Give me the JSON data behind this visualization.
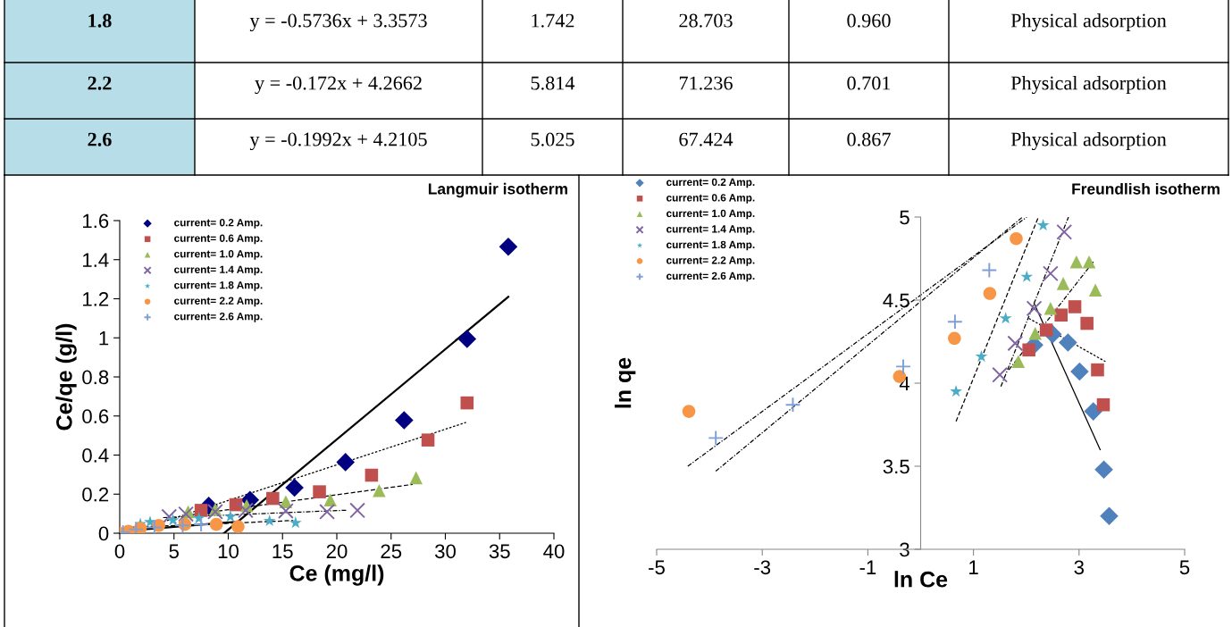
{
  "chart_data": [
    {
      "type": "other",
      "annotations": [
        "1.8",
        "y = -0.5736x + 3.3573",
        "1.742",
        "28.703",
        "0.960",
        "Physical adsorption",
        "2.2",
        "y = -0.172x + 4.2662",
        "5.814",
        "71.236",
        "0.701",
        "Physical adsorption",
        "2.6",
        "y = -0.1992x + 4.2105",
        "5.025",
        "67.424",
        "0.867",
        "Physical adsorption"
      ]
    },
    {
      "type": "scatter",
      "title": "Langmuir isotherm",
      "xlabel": "Ce (mg/l)",
      "ylabel": "Ce/qe (g/l)",
      "xlim": [
        0,
        40
      ],
      "ylim": [
        0,
        1.6
      ],
      "xticks": [
        0,
        5,
        10,
        15,
        20,
        25,
        30,
        35,
        40
      ],
      "yticks": [
        0,
        0.2,
        0.4,
        0.6,
        0.8,
        1,
        1.2,
        1.4,
        1.6
      ],
      "grid": false,
      "legend": "top left",
      "series": [
        {
          "name": "current= 0.2 Amp.",
          "color": "#000080",
          "marker": "diamond",
          "x": [
            8.2,
            12.0,
            16.1,
            20.8,
            26.2,
            32.0,
            35.8
          ],
          "values": [
            0.14,
            0.17,
            0.233,
            0.364,
            0.578,
            0.994,
            1.466
          ]
        },
        {
          "name": "current= 0.6 Amp.",
          "color": "#c0504d",
          "marker": "square",
          "x": [
            7.5,
            10.7,
            14.1,
            18.4,
            23.2,
            28.4,
            32.0
          ],
          "values": [
            0.117,
            0.146,
            0.178,
            0.212,
            0.297,
            0.477,
            0.667
          ]
        },
        {
          "name": "current= 1.0 Amp.",
          "color": "#9bbb59",
          "marker": "triangle",
          "x": [
            6.3,
            8.8,
            11.7,
            15.3,
            19.4,
            23.9,
            27.3
          ],
          "values": [
            0.11,
            0.123,
            0.142,
            0.161,
            0.17,
            0.218,
            0.284
          ]
        },
        {
          "name": "current= 1.4 Amp.",
          "color": "#8064a2",
          "marker": "cross",
          "x": [
            4.55,
            6.1,
            8.8,
            11.6,
            15.3,
            19.1,
            21.9
          ],
          "values": [
            0.085,
            0.098,
            0.11,
            0.117,
            0.114,
            0.11,
            0.117
          ]
        },
        {
          "name": "current= 1.8 Amp.",
          "color": "#4bacc6",
          "marker": "star",
          "x": [
            1.9,
            2.8,
            4.9,
            7.3,
            10.2,
            13.8,
            16.2
          ],
          "values": [
            0.047,
            0.057,
            0.066,
            0.076,
            0.085,
            0.063,
            0.053
          ]
        },
        {
          "name": "current= 2.2 Amp.",
          "color": "#f79646",
          "marker": "circle",
          "x": [
            0,
            0.8,
            1.9,
            3.6,
            6.0,
            8.9,
            10.9
          ],
          "values": [
            0,
            0.01,
            0.025,
            0.04,
            0.045,
            0.045,
            0.034
          ]
        },
        {
          "name": "current= 2.6 Amp.",
          "color": "#7f9fd6",
          "marker": "plus",
          "x": [
            0.3,
            1.5,
            3.2,
            5.8,
            7.5
          ],
          "values": [
            0.005,
            0.02,
            0.03,
            0.04,
            0.045
          ]
        },
        {
          "type": "line",
          "color": "#000000",
          "marker": "none",
          "line_style": "solid",
          "x": [
            9.6,
            35.8
          ],
          "values": [
            0,
            1.21
          ]
        },
        {
          "type": "line",
          "color": "#000000",
          "marker": "none",
          "line_style": "dotted",
          "x": [
            3,
            31.9
          ],
          "values": [
            0.04,
            0.567
          ]
        },
        {
          "type": "line",
          "color": "#000000",
          "marker": "none",
          "line_style": "dashed",
          "x": [
            6,
            27
          ],
          "values": [
            0.09,
            0.25
          ]
        },
        {
          "type": "line",
          "color": "#000000",
          "marker": "none",
          "line_style": "dashdot",
          "x": [
            4,
            21
          ],
          "values": [
            0.08,
            0.118
          ]
        },
        {
          "type": "line",
          "color": "#000000",
          "marker": "none",
          "line_style": "dashed",
          "x": [
            1,
            16
          ],
          "values": [
            0.03,
            0.065
          ]
        },
        {
          "type": "line",
          "color": "#000000",
          "marker": "none",
          "line_style": "solid",
          "x": [
            0,
            11
          ],
          "values": [
            0.01,
            0.06
          ]
        }
      ]
    },
    {
      "type": "scatter",
      "title": "Freundlish isotherm",
      "xlabel": "ln Ce",
      "ylabel": "ln qe",
      "xlim": [
        -5,
        5
      ],
      "ylim": [
        3,
        5
      ],
      "xticks": [
        -5,
        -3,
        -1,
        1,
        3,
        5
      ],
      "yticks": [
        3,
        3.5,
        4,
        4.5,
        5
      ],
      "grid": false,
      "legend": "top left",
      "series": [
        {
          "name": "current= 0.2 Amp.",
          "color": "#4f81bd",
          "marker": "diamond",
          "x": [
            2.15,
            2.5,
            2.79,
            3.01,
            3.27,
            3.47,
            3.57
          ],
          "values": [
            4.23,
            4.295,
            4.245,
            4.07,
            3.83,
            3.48,
            3.2
          ]
        },
        {
          "name": "current= 0.6 Amp.",
          "color": "#c0504d",
          "marker": "square",
          "x": [
            2.05,
            2.38,
            2.66,
            2.92,
            3.15,
            3.35,
            3.46
          ],
          "values": [
            4.2,
            4.32,
            4.41,
            4.46,
            4.36,
            4.08,
            3.87
          ]
        },
        {
          "name": "current= 1.0 Amp.",
          "color": "#9bbb59",
          "marker": "triangle",
          "x": [
            1.85,
            2.17,
            2.46,
            2.7,
            2.95,
            3.19,
            3.31
          ],
          "values": [
            4.13,
            4.3,
            4.45,
            4.6,
            4.73,
            4.73,
            4.56
          ]
        },
        {
          "name": "current= 1.4 Amp.",
          "color": "#8064a2",
          "marker": "cross",
          "x": [
            1.5,
            1.79,
            2.15,
            2.46,
            2.72
          ],
          "values": [
            4.05,
            4.24,
            4.45,
            4.66,
            4.91
          ]
        },
        {
          "name": "current= 1.8 Amp.",
          "color": "#4bacc6",
          "marker": "star",
          "x": [
            0.67,
            1.15,
            1.61,
            2.01,
            2.32
          ],
          "values": [
            3.95,
            4.16,
            4.39,
            4.64,
            4.95
          ]
        },
        {
          "name": "current= 2.2 Amp.",
          "color": "#f79646",
          "marker": "circle",
          "x": [
            -4.39,
            -0.4,
            0.64,
            1.31,
            1.81
          ],
          "values": [
            3.83,
            4.04,
            4.27,
            4.54,
            4.87
          ]
        },
        {
          "name": "current= 2.6 Amp.",
          "color": "#7f9fd6",
          "marker": "plus",
          "x": [
            -3.88,
            -2.42,
            -0.33,
            0.65,
            1.3
          ],
          "values": [
            3.67,
            3.87,
            4.1,
            4.37,
            4.68
          ]
        },
        {
          "type": "line",
          "color": "#000000",
          "marker": "none",
          "line_style": "solid",
          "x": [
            2.15,
            3.4
          ],
          "values": [
            4.48,
            3.6
          ]
        },
        {
          "type": "line",
          "color": "#000000",
          "marker": "none",
          "line_style": "dotted",
          "x": [
            2.05,
            3.5
          ],
          "values": [
            4.39,
            4.13
          ]
        },
        {
          "type": "line",
          "color": "#000000",
          "marker": "none",
          "line_style": "dashdot",
          "x": [
            1.67,
            3.27
          ],
          "values": [
            4.08,
            4.73
          ]
        },
        {
          "type": "line",
          "color": "#000000",
          "marker": "none",
          "line_style": "dashdot",
          "x": [
            1.52,
            2.8
          ],
          "values": [
            3.98,
            5.0
          ]
        },
        {
          "type": "line",
          "color": "#000000",
          "marker": "none",
          "line_style": "dashed",
          "x": [
            0.67,
            2.23
          ],
          "values": [
            3.77,
            5.0
          ]
        },
        {
          "type": "line",
          "color": "#000000",
          "marker": "none",
          "line_style": "dashdot",
          "x": [
            -4.41,
            2.01
          ],
          "values": [
            3.5,
            5.0
          ]
        },
        {
          "type": "line",
          "color": "#000000",
          "marker": "none",
          "line_style": "dashdot",
          "x": [
            -3.88,
            1.93
          ],
          "values": [
            3.47,
            5.0
          ]
        }
      ]
    }
  ]
}
